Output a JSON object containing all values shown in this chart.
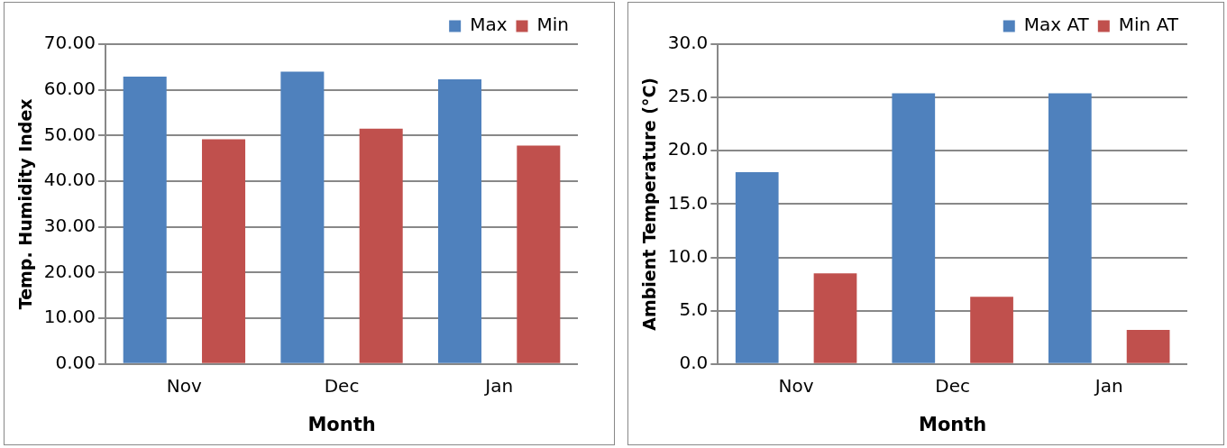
{
  "chart_data": [
    {
      "type": "bar",
      "xlabel": "Month",
      "ylabel": "Temp. Humidity Index",
      "categories": [
        "Nov",
        "Dec",
        "Jan"
      ],
      "series": [
        {
          "name": "Max",
          "color": "#4f81bd",
          "values": [
            62.9,
            64.0,
            62.3
          ]
        },
        {
          "name": "Min",
          "color": "#c0504d",
          "values": [
            49.2,
            51.5,
            47.8
          ]
        }
      ],
      "ylim": [
        0,
        70
      ],
      "yticks": [
        {
          "value": 0,
          "label": "0.00"
        },
        {
          "value": 10,
          "label": "10.00"
        },
        {
          "value": 20,
          "label": "20.00"
        },
        {
          "value": 30,
          "label": "30.00"
        },
        {
          "value": 40,
          "label": "40.00"
        },
        {
          "value": 50,
          "label": "50.00"
        },
        {
          "value": 60,
          "label": "60.00"
        },
        {
          "value": 70,
          "label": "70.00"
        }
      ],
      "grid": "y",
      "legend": "top right"
    },
    {
      "type": "bar",
      "xlabel": "Month",
      "ylabel": "Ambient Temperature (°C)",
      "categories": [
        "Nov",
        "Dec",
        "Jan"
      ],
      "series": [
        {
          "name": "Max AT",
          "color": "#4f81bd",
          "values": [
            18.0,
            25.4,
            25.4
          ]
        },
        {
          "name": "Min AT",
          "color": "#c0504d",
          "values": [
            8.5,
            6.3,
            3.2
          ]
        }
      ],
      "ylim": [
        0,
        30
      ],
      "yticks": [
        {
          "value": 0,
          "label": "0.0"
        },
        {
          "value": 5,
          "label": "5.0"
        },
        {
          "value": 10,
          "label": "10.0"
        },
        {
          "value": 15,
          "label": "15.0"
        },
        {
          "value": 20,
          "label": "20.0"
        },
        {
          "value": 25,
          "label": "25.0"
        },
        {
          "value": 30,
          "label": "30.0"
        }
      ],
      "grid": "y",
      "legend": "top right"
    }
  ]
}
